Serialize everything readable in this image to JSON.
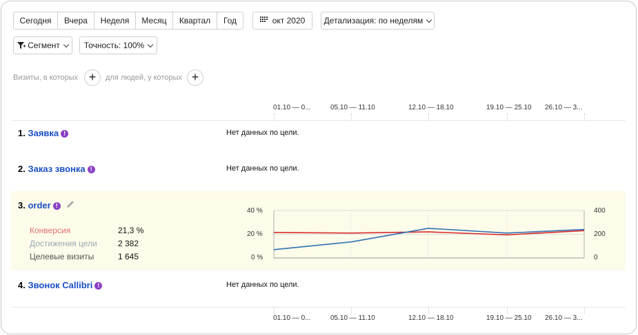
{
  "toolbar": {
    "periods": [
      "Сегодня",
      "Вчера",
      "Неделя",
      "Месяц",
      "Квартал",
      "Год"
    ],
    "date_label": "окт 2020",
    "detail_label": "Детализация: по неделям",
    "segment_label": "Сегмент",
    "accuracy_label": "Точность: 100%"
  },
  "filters": {
    "visits_label": "Визиты, в которых",
    "people_label": "для людей, у которых"
  },
  "weeks": [
    "01.10 — 0...",
    "05.10 — 11.10",
    "12.10 — 18.10",
    "19.10 — 25.10",
    "26.10 — 3..."
  ],
  "goals": [
    {
      "num": "1.",
      "name": "Заявка",
      "status": "Нет данных по цели."
    },
    {
      "num": "2.",
      "name": "Заказ звонка",
      "status": "Нет данных по цели."
    },
    {
      "num": "3.",
      "name": "order",
      "status": ""
    },
    {
      "num": "4.",
      "name": "Звонок Callibri",
      "status": "Нет данных по цели."
    }
  ],
  "order_metrics": [
    {
      "label": "Конверсия",
      "value": "21,3 %",
      "color": "#e07070"
    },
    {
      "label": "Достижения цели",
      "value": "2 382",
      "color": "#9aaab8"
    },
    {
      "label": "Целевые визиты",
      "value": "1 645",
      "color": "#555555"
    }
  ],
  "chart_data": {
    "type": "line",
    "x": [
      "01.10 — 0...",
      "05.10 — 11.10",
      "12.10 — 18.10",
      "19.10 — 25.10",
      "26.10 — 3..."
    ],
    "y_left_ticks": [
      "40 %",
      "20 %",
      "0 %"
    ],
    "y_right_ticks": [
      "400",
      "200",
      "0"
    ],
    "y_left_lim": [
      0,
      40
    ],
    "y_right_lim": [
      0,
      400
    ],
    "series": [
      {
        "axis": "left",
        "color": "#d92a2a",
        "values": [
          21.5,
          21,
          22,
          19.5,
          23
        ]
      },
      {
        "axis": "right",
        "color": "#2f6fb3",
        "values": [
          70,
          135,
          250,
          210,
          240
        ]
      }
    ]
  },
  "icons": {
    "info": "info-icon",
    "edit": "pencil-icon",
    "calendar": "calendar-icon",
    "filter": "filter-icon"
  }
}
